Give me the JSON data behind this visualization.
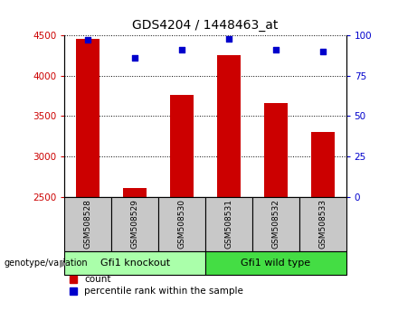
{
  "title": "GDS4204 / 1448463_at",
  "samples": [
    "GSM508528",
    "GSM508529",
    "GSM508530",
    "GSM508531",
    "GSM508532",
    "GSM508533"
  ],
  "counts": [
    4460,
    2610,
    3760,
    4250,
    3660,
    3300
  ],
  "percentiles": [
    97,
    86,
    91,
    98,
    91,
    90
  ],
  "ylim_left": [
    2500,
    4500
  ],
  "ylim_right": [
    0,
    100
  ],
  "yticks_left": [
    2500,
    3000,
    3500,
    4000,
    4500
  ],
  "yticks_right": [
    0,
    25,
    50,
    75,
    100
  ],
  "bar_color": "#cc0000",
  "dot_color": "#0000cc",
  "bar_width": 0.5,
  "groups": [
    {
      "label": "Gfi1 knockout",
      "samples": [
        0,
        1,
        2
      ],
      "color": "#aaffaa"
    },
    {
      "label": "Gfi1 wild type",
      "samples": [
        3,
        4,
        5
      ],
      "color": "#44dd44"
    }
  ],
  "genotype_label": "genotype/variation",
  "legend_count": "count",
  "legend_percentile": "percentile rank within the sample",
  "tick_label_color_left": "#cc0000",
  "tick_label_color_right": "#0000cc",
  "label_bg_color": "#c8c8c8"
}
